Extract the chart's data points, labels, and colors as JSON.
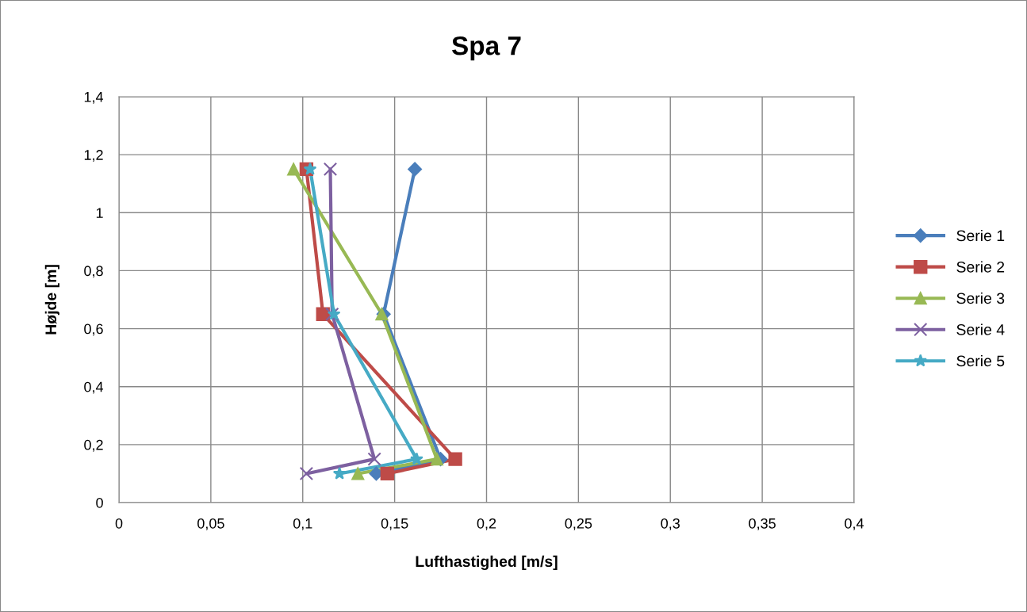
{
  "chart_data": {
    "type": "line",
    "title": "Spa 7",
    "xlabel": "Lufthastighed [m/s]",
    "ylabel": "Højde [m]",
    "xlim": [
      0,
      0.4
    ],
    "xticks": [
      {
        "value": 0,
        "label": "0"
      },
      {
        "value": 0.05,
        "label": "0,05"
      },
      {
        "value": 0.1,
        "label": "0,1"
      },
      {
        "value": 0.15,
        "label": "0,15"
      },
      {
        "value": 0.2,
        "label": "0,2"
      },
      {
        "value": 0.25,
        "label": "0,25"
      },
      {
        "value": 0.3,
        "label": "0,3"
      },
      {
        "value": 0.35,
        "label": "0,35"
      },
      {
        "value": 0.4,
        "label": "0,4"
      }
    ],
    "ylim": [
      0,
      1.4
    ],
    "yticks": [
      {
        "value": 0,
        "label": "0"
      },
      {
        "value": 0.2,
        "label": "0,2"
      },
      {
        "value": 0.4,
        "label": "0,4"
      },
      {
        "value": 0.6,
        "label": "0,6"
      },
      {
        "value": 0.8,
        "label": "0,8"
      },
      {
        "value": 1,
        "label": "1"
      },
      {
        "value": 1.2,
        "label": "1,2"
      },
      {
        "value": 1.4,
        "label": "1,4"
      }
    ],
    "grid": true,
    "legend": "right",
    "line_style": "solid",
    "series": [
      {
        "name": "Serie 1",
        "color": "#4a7ebb",
        "marker": "diamond",
        "x": [
          0.14,
          0.175,
          0.144,
          0.161
        ],
        "values": [
          0.1,
          0.15,
          0.65,
          1.15
        ]
      },
      {
        "name": "Serie 2",
        "color": "#be4b48",
        "marker": "square",
        "x": [
          0.146,
          0.183,
          0.111,
          0.102
        ],
        "values": [
          0.1,
          0.15,
          0.65,
          1.15
        ]
      },
      {
        "name": "Serie 3",
        "color": "#98b954",
        "marker": "triangle",
        "x": [
          0.13,
          0.173,
          0.143,
          0.095
        ],
        "values": [
          0.1,
          0.15,
          0.65,
          1.15
        ]
      },
      {
        "name": "Serie 4",
        "color": "#7d60a0",
        "marker": "cross",
        "x": [
          0.102,
          0.139,
          0.116,
          0.115
        ],
        "values": [
          0.1,
          0.15,
          0.65,
          1.15
        ]
      },
      {
        "name": "Serie 5",
        "color": "#46aac5",
        "marker": "star",
        "x": [
          0.12,
          0.162,
          0.117,
          0.104
        ],
        "values": [
          0.1,
          0.15,
          0.65,
          1.15
        ]
      }
    ]
  }
}
